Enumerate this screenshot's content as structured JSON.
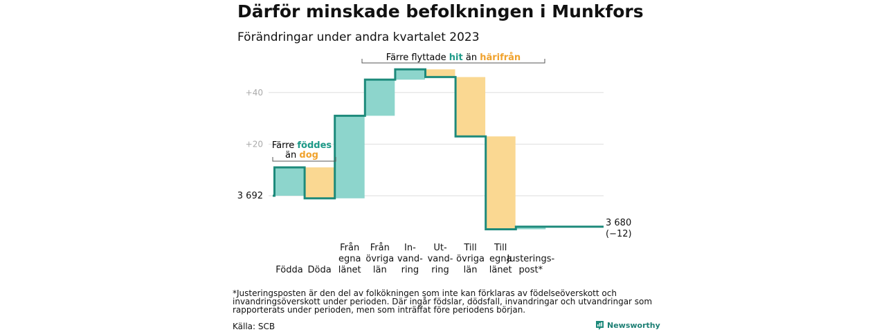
{
  "title": "Därför minskade befolkningen i Munkfors",
  "subtitle": "Förändringar under andra kvartalet 2023",
  "footnote": "*Justeringsposten är den del av folkökningen som inte kan förklaras av födelseöverskott och invandringsöverskott under perioden. Där ingår födslar, dödsfall, invandringar och utvandringar som rapporterats under perioden, men som inträffat före periodens början.",
  "source": "Källa: SCB",
  "brand": "Newsworthy",
  "colors": {
    "increase": "#8dd5cc",
    "decrease": "#fad892",
    "line": "#1d8a7b",
    "teal_text": "#1d9a88",
    "orange_text": "#f0a22c",
    "grid": "#dddddd",
    "tick": "#aaaaaa"
  },
  "annotations": {
    "birth": {
      "prefix": "Färre ",
      "hl1": "föddes",
      "line2_prefix": "än ",
      "hl2": "dog"
    },
    "migration": {
      "prefix": "Färre flyttade ",
      "hl1": "hit",
      "mid": " än ",
      "hl2": "härifrån"
    }
  },
  "chart_data": {
    "type": "waterfall",
    "start_label": "3 692",
    "start_value": 3692,
    "end_label": "3 680",
    "end_change": "(−12)",
    "end_value": 3680,
    "y_ticks": [
      "+20",
      "+40"
    ],
    "y_tick_values": [
      20,
      40
    ],
    "ylim": [
      -13,
      51
    ],
    "categories": [
      {
        "lines": [
          "Födda"
        ],
        "value": 11
      },
      {
        "lines": [
          "Döda"
        ],
        "value": -12
      },
      {
        "lines": [
          "Från",
          "egna",
          "länet"
        ],
        "value": 32
      },
      {
        "lines": [
          "Från",
          "övriga",
          "län"
        ],
        "value": 14
      },
      {
        "lines": [
          "In-",
          "vand-",
          "ring"
        ],
        "value": 4
      },
      {
        "lines": [
          "Ut-",
          "vand-",
          "ring"
        ],
        "value": -3
      },
      {
        "lines": [
          "Till",
          "övriga",
          "län"
        ],
        "value": -23
      },
      {
        "lines": [
          "Till",
          "egna",
          "länet"
        ],
        "value": -36
      },
      {
        "lines": [
          "Justerings-",
          "post*"
        ],
        "value": 1
      }
    ]
  }
}
